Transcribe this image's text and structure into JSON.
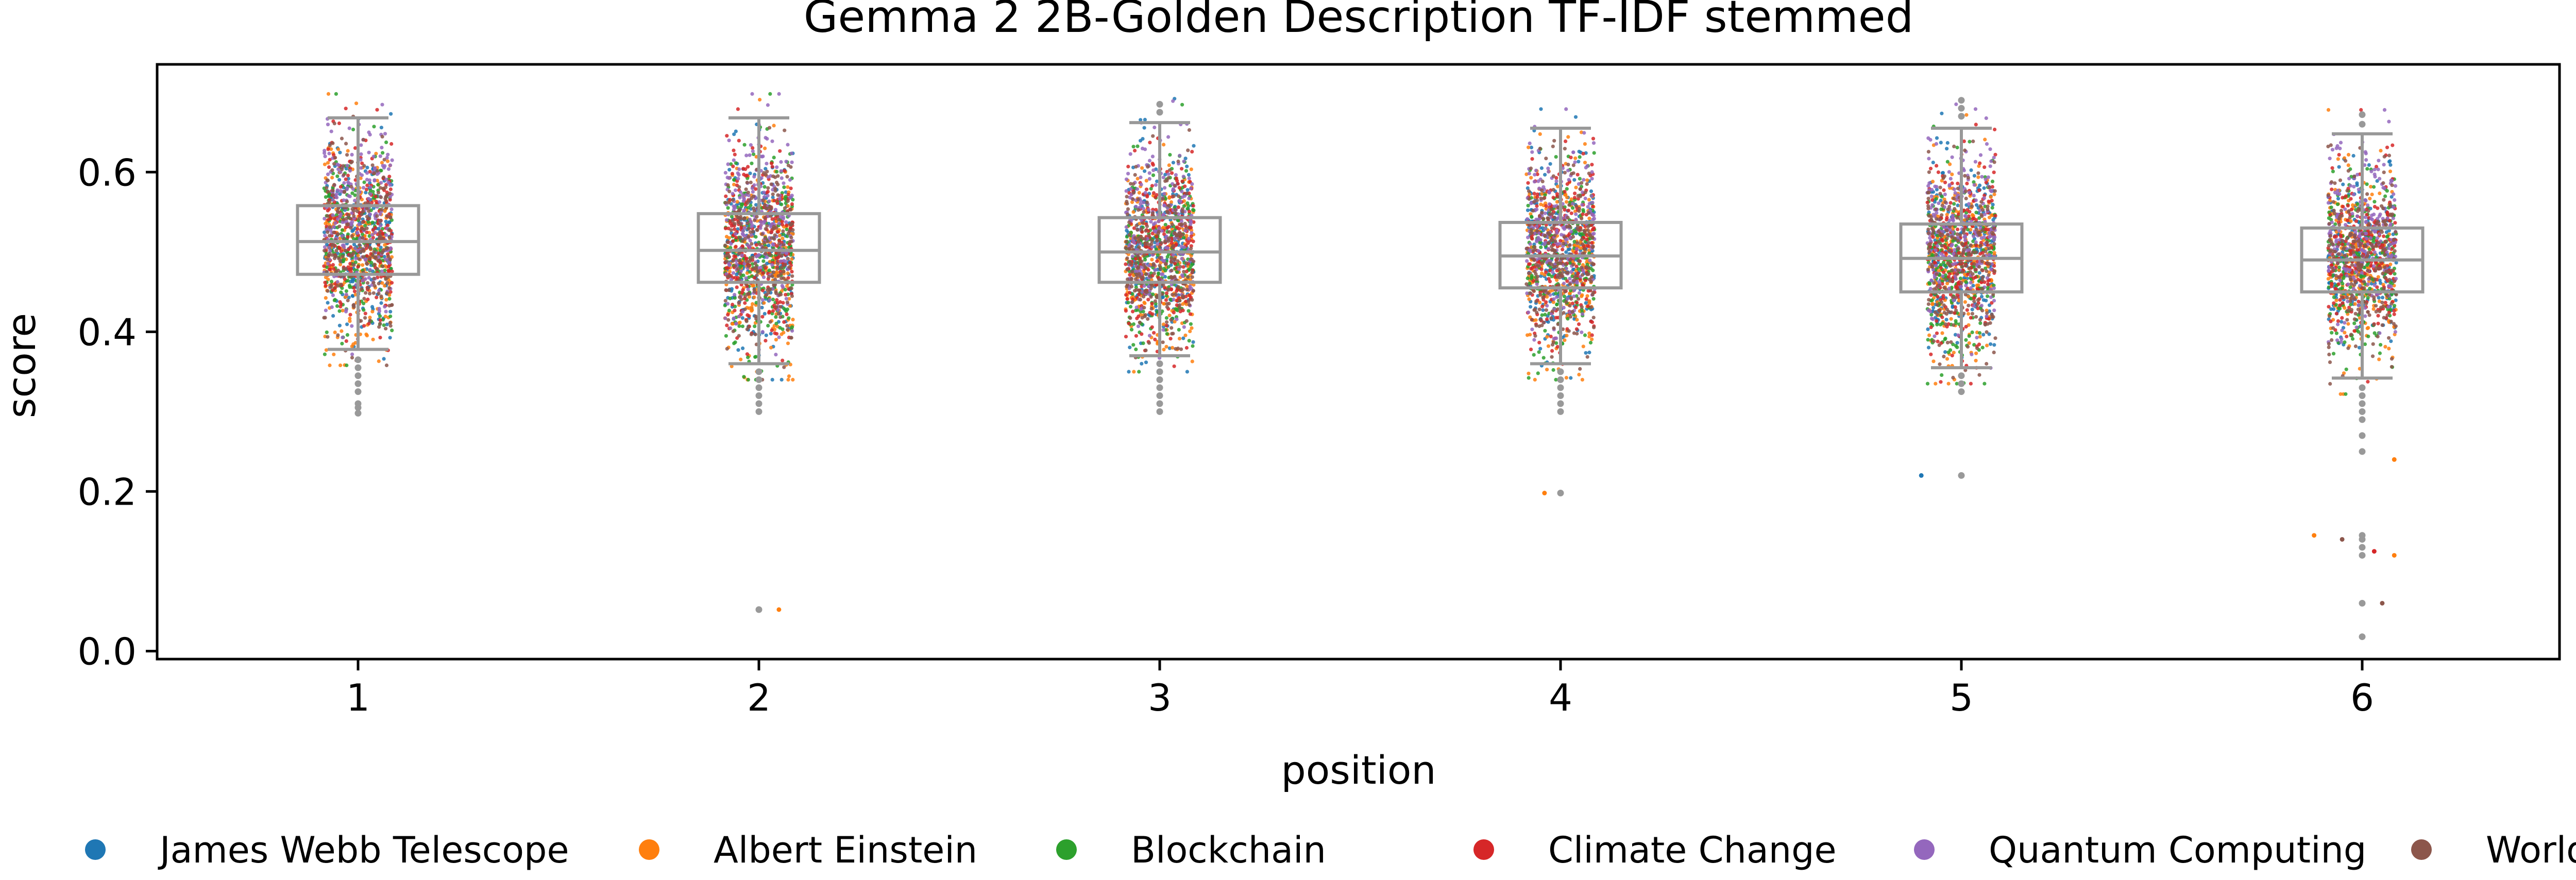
{
  "chart_data": {
    "type": "box-strip",
    "title": "Gemma 2 2B-Golden Description TF-IDF stemmed",
    "xlabel": "position",
    "ylabel": "score",
    "ylim": [
      -0.01,
      0.735
    ],
    "yticks": [
      0.0,
      0.2,
      0.4,
      0.6
    ],
    "yticklabels": [
      "0.0",
      "0.2",
      "0.4",
      "0.6"
    ],
    "categories": [
      "1",
      "2",
      "3",
      "4",
      "5",
      "6"
    ],
    "grid": false,
    "legend_position": "bottom",
    "legend": [
      {
        "name": "James Webb Telescope",
        "color": "#1f77b4"
      },
      {
        "name": "Albert Einstein",
        "color": "#ff7f0e"
      },
      {
        "name": "Blockchain",
        "color": "#2ca02c"
      },
      {
        "name": "Climate Change",
        "color": "#d62728"
      },
      {
        "name": "Quantum Computing",
        "color": "#9467bd"
      },
      {
        "name": "World War II",
        "color": "#8c564b"
      }
    ],
    "box_color": "#999999",
    "boxes": [
      {
        "position": "1",
        "q1": 0.472,
        "median": 0.513,
        "q3": 0.558,
        "whisker_low": 0.378,
        "whisker_high": 0.668,
        "outliers": [
          0.365,
          0.355,
          0.345,
          0.335,
          0.325,
          0.31,
          0.305,
          0.298
        ]
      },
      {
        "position": "2",
        "q1": 0.462,
        "median": 0.502,
        "q3": 0.548,
        "whisker_low": 0.36,
        "whisker_high": 0.668,
        "outliers": [
          0.35,
          0.34,
          0.33,
          0.32,
          0.31,
          0.3,
          0.052
        ]
      },
      {
        "position": "3",
        "q1": 0.462,
        "median": 0.5,
        "q3": 0.543,
        "whisker_low": 0.37,
        "whisker_high": 0.662,
        "outliers": [
          0.36,
          0.35,
          0.34,
          0.33,
          0.32,
          0.31,
          0.3,
          0.675,
          0.685
        ]
      },
      {
        "position": "4",
        "q1": 0.455,
        "median": 0.495,
        "q3": 0.537,
        "whisker_low": 0.36,
        "whisker_high": 0.655,
        "outliers": [
          0.35,
          0.34,
          0.33,
          0.32,
          0.31,
          0.3,
          0.198
        ]
      },
      {
        "position": "5",
        "q1": 0.45,
        "median": 0.492,
        "q3": 0.535,
        "whisker_low": 0.355,
        "whisker_high": 0.655,
        "outliers": [
          0.345,
          0.335,
          0.325,
          0.67,
          0.68,
          0.69,
          0.22
        ]
      },
      {
        "position": "6",
        "q1": 0.45,
        "median": 0.49,
        "q3": 0.53,
        "whisker_low": 0.342,
        "whisker_high": 0.648,
        "outliers": [
          0.33,
          0.32,
          0.31,
          0.3,
          0.29,
          0.27,
          0.25,
          0.145,
          0.14,
          0.13,
          0.12,
          0.06,
          0.018,
          0.66,
          0.672
        ]
      }
    ],
    "points_per_topic_per_position": 220,
    "jitter_half_width": 0.085,
    "strip_outliers": [
      {
        "position": "2",
        "x_offset": 0.05,
        "score": 0.052,
        "topic": "Albert Einstein"
      },
      {
        "position": "4",
        "x_offset": -0.04,
        "score": 0.198,
        "topic": "Albert Einstein"
      },
      {
        "position": "5",
        "x_offset": -0.1,
        "score": 0.22,
        "topic": "James Webb Telescope"
      },
      {
        "position": "6",
        "x_offset": -0.12,
        "score": 0.145,
        "topic": "Albert Einstein"
      },
      {
        "position": "6",
        "x_offset": -0.05,
        "score": 0.14,
        "topic": "World War II"
      },
      {
        "position": "6",
        "x_offset": 0.03,
        "score": 0.125,
        "topic": "Climate Change"
      },
      {
        "position": "6",
        "x_offset": 0.08,
        "score": 0.12,
        "topic": "Albert Einstein"
      },
      {
        "position": "6",
        "x_offset": 0.05,
        "score": 0.06,
        "topic": "World War II"
      },
      {
        "position": "6",
        "x_offset": 0.0,
        "score": 0.018,
        "topic": "Quantum Computing"
      },
      {
        "position": "6",
        "x_offset": 0.08,
        "score": 0.24,
        "topic": "Albert Einstein"
      }
    ]
  }
}
